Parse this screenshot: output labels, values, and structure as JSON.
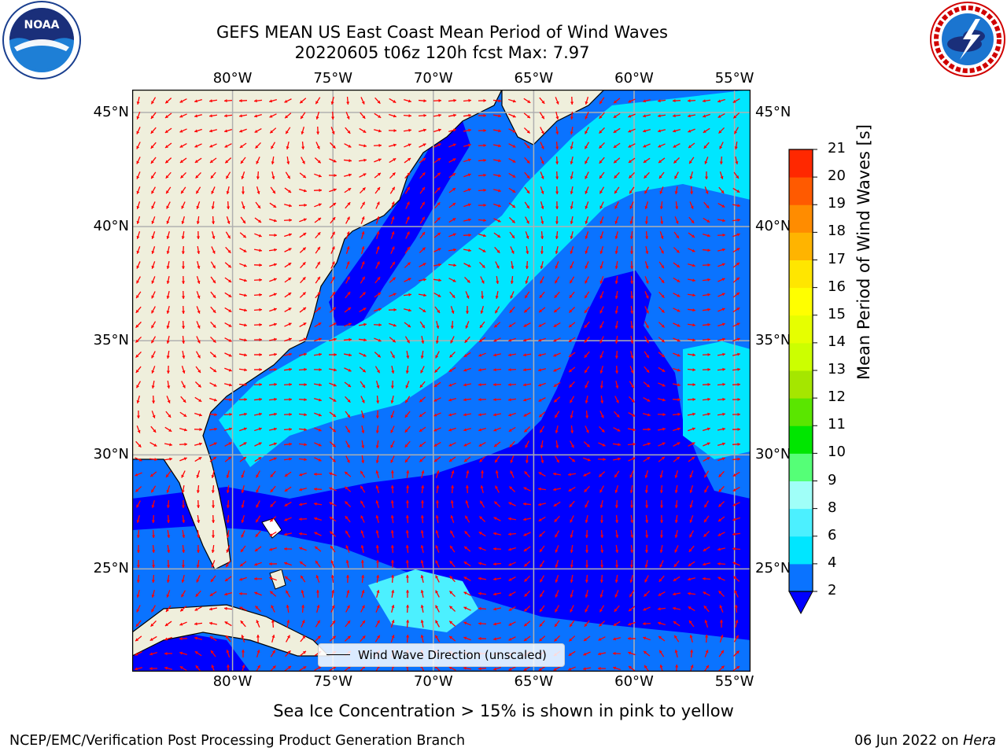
{
  "header": {
    "title_line1": "GEFS MEAN US East Coast Mean Period of Wind Waves",
    "title_line2": "20220605 t06z 120h fcst   Max: 7.97"
  },
  "logos": {
    "left": "noaa-logo",
    "left_text": "NOAA",
    "right": "nws-logo"
  },
  "map": {
    "projection": "plate-carree",
    "lon_range": [
      -85,
      -54.2
    ],
    "lat_range": [
      20.5,
      46
    ],
    "lon_ticks": [
      {
        "value": -80,
        "label": "80°W"
      },
      {
        "value": -75,
        "label": "75°W"
      },
      {
        "value": -70,
        "label": "70°W"
      },
      {
        "value": -65,
        "label": "65°W"
      },
      {
        "value": -60,
        "label": "60°W"
      },
      {
        "value": -55,
        "label": "55°W"
      }
    ],
    "lat_ticks": [
      {
        "value": 45,
        "label": "45°N"
      },
      {
        "value": 40,
        "label": "40°N"
      },
      {
        "value": 35,
        "label": "35°N"
      },
      {
        "value": 30,
        "label": "30°N"
      },
      {
        "value": 25,
        "label": "25°N"
      }
    ],
    "grid": true,
    "land_color": "#efefdc",
    "arrow_color": "#ff0000",
    "legend_label": "Wind Wave Direction (unscaled)",
    "legend_position": "bottom-center"
  },
  "colorbar": {
    "title": "Mean Period of Wind Waves [s]",
    "labels": [
      "2",
      "4",
      "6",
      "8",
      "9",
      "10",
      "11",
      "12",
      "13",
      "14",
      "15",
      "16",
      "17",
      "18",
      "19",
      "20",
      "21"
    ],
    "colors": [
      "#0a73ff",
      "#00e6ff",
      "#4cf0ff",
      "#a0fff8",
      "#55ff77",
      "#00e600",
      "#5ae600",
      "#a5e600",
      "#ccff00",
      "#e6ff00",
      "#ffff00",
      "#ffe600",
      "#ffb400",
      "#ff8c00",
      "#ff5a00",
      "#ff2800",
      "#ff0000"
    ],
    "under_color": "#0000ff"
  },
  "footer": {
    "subtitle": "Sea Ice Concentration > 15% is shown in pink to yellow",
    "left": "NCEP/EMC/Verification Post Processing Product Generation Branch",
    "date": "06 Jun 2022 on ",
    "machine": "Hera"
  }
}
